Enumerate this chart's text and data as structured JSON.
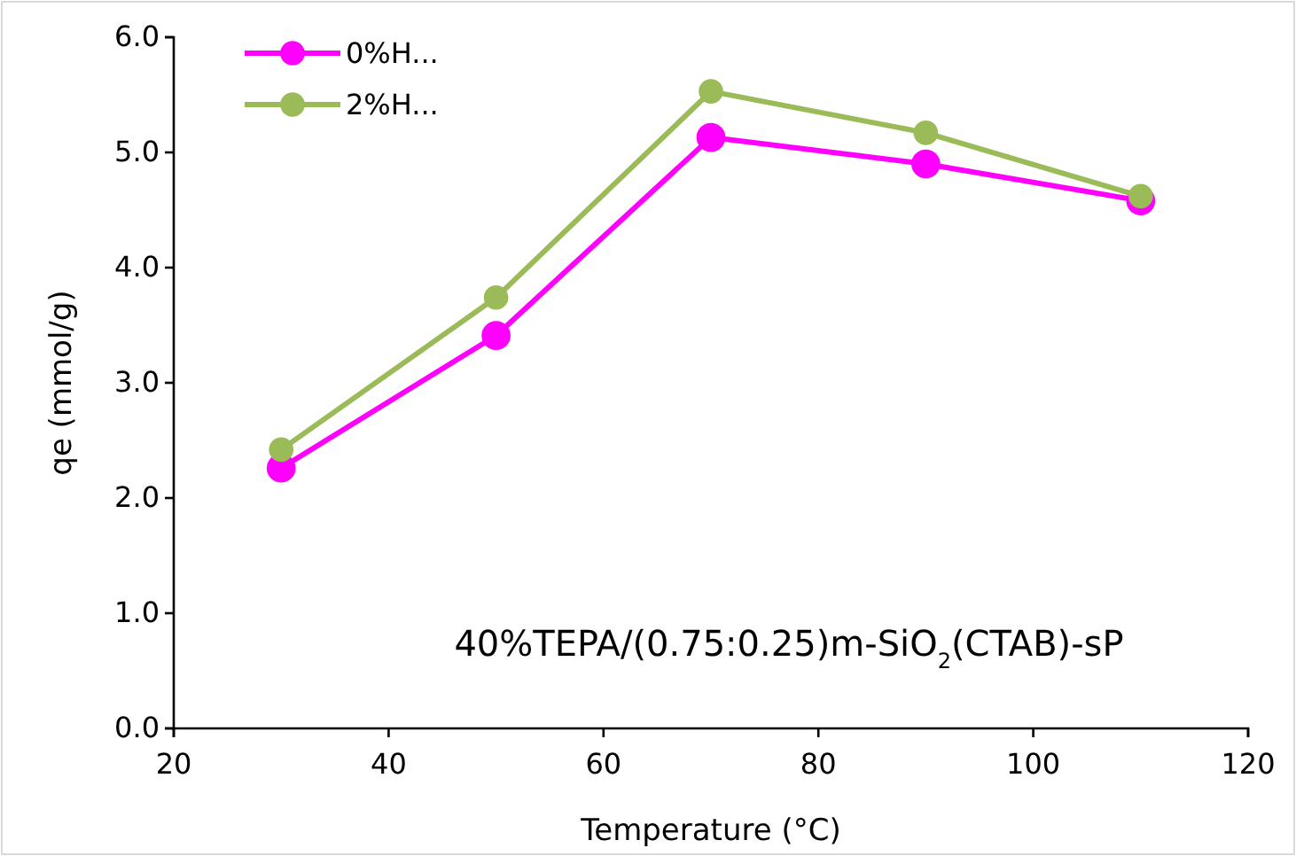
{
  "chart_data": {
    "type": "line",
    "xlabel": "Temperature (°C)",
    "ylabel": "qe (mmol/g)",
    "x": [
      30,
      50,
      70,
      90,
      110
    ],
    "series": [
      {
        "name": "0%H...",
        "color": "#ff00ff",
        "values": [
          2.26,
          3.41,
          5.13,
          4.9,
          4.58
        ]
      },
      {
        "name": "2%H...",
        "color": "#9bbb59",
        "values": [
          2.42,
          3.74,
          5.53,
          5.17,
          4.62
        ]
      }
    ],
    "xlim": [
      20,
      120
    ],
    "xticks": [
      20,
      40,
      60,
      80,
      100,
      120
    ],
    "ylim": [
      0,
      6
    ],
    "yticks": [
      {
        "value": 0,
        "label": "0.0"
      },
      {
        "value": 1,
        "label": "1.0"
      },
      {
        "value": 2,
        "label": "2.0"
      },
      {
        "value": 3,
        "label": "3.0"
      },
      {
        "value": 4,
        "label": "4.0"
      },
      {
        "value": 5,
        "label": "5.0"
      },
      {
        "value": 6,
        "label": "6.0"
      }
    ],
    "annotations": [
      "40%TEPA/(0.75:0.25)m-SiO$_{2}$(CTAB)-sP"
    ],
    "legend": "top left",
    "marker": "circle",
    "line_style": "solid",
    "grid": false
  }
}
